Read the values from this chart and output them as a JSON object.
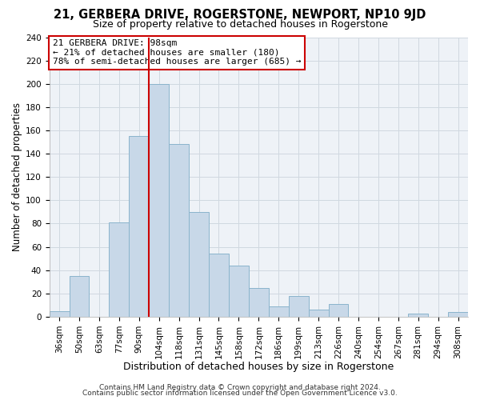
{
  "title": "21, GERBERA DRIVE, ROGERSTONE, NEWPORT, NP10 9JD",
  "subtitle": "Size of property relative to detached houses in Rogerstone",
  "xlabel": "Distribution of detached houses by size in Rogerstone",
  "ylabel": "Number of detached properties",
  "categories": [
    "36sqm",
    "50sqm",
    "63sqm",
    "77sqm",
    "90sqm",
    "104sqm",
    "118sqm",
    "131sqm",
    "145sqm",
    "158sqm",
    "172sqm",
    "186sqm",
    "199sqm",
    "213sqm",
    "226sqm",
    "240sqm",
    "254sqm",
    "267sqm",
    "281sqm",
    "294sqm",
    "308sqm"
  ],
  "values": [
    5,
    35,
    0,
    81,
    155,
    200,
    148,
    90,
    54,
    44,
    25,
    9,
    18,
    6,
    11,
    0,
    0,
    0,
    3,
    0,
    4
  ],
  "bar_color": "#c8d8e8",
  "bar_edge_color": "#8ab4cc",
  "vline_x_index": 5,
  "vline_color": "#cc0000",
  "annotation_text": "21 GERBERA DRIVE: 98sqm\n← 21% of detached houses are smaller (180)\n78% of semi-detached houses are larger (685) →",
  "annotation_box_color": "#ffffff",
  "annotation_box_edge_color": "#cc0000",
  "footer1": "Contains HM Land Registry data © Crown copyright and database right 2024.",
  "footer2": "Contains public sector information licensed under the Open Government Licence v3.0.",
  "ylim": [
    0,
    240
  ],
  "yticks": [
    0,
    20,
    40,
    60,
    80,
    100,
    120,
    140,
    160,
    180,
    200,
    220,
    240
  ],
  "grid_color": "#d0d8e0",
  "bg_color": "#eef2f7",
  "title_fontsize": 10.5,
  "subtitle_fontsize": 9,
  "xlabel_fontsize": 9,
  "ylabel_fontsize": 8.5,
  "tick_fontsize": 7.5,
  "annotation_fontsize": 8,
  "footer_fontsize": 6.5
}
